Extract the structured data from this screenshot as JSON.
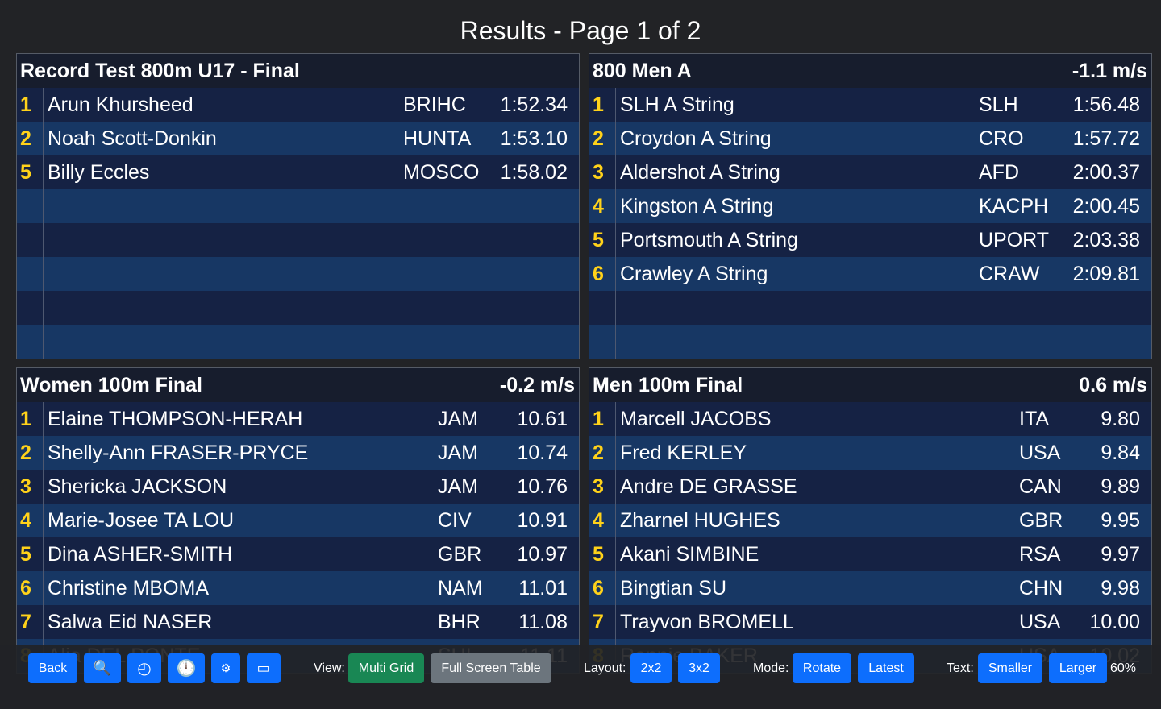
{
  "page_title": "Results - Page 1 of 2",
  "panels": [
    {
      "title": "Record Test 800m U17 - Final",
      "wind": "",
      "club_width": 114,
      "time_width": 104,
      "rows": [
        {
          "pos": "1",
          "name": "Arun Khursheed",
          "club": "BRIHC",
          "time": "1:52.34"
        },
        {
          "pos": "2",
          "name": "Noah Scott-Donkin",
          "club": "HUNTA",
          "time": "1:53.10"
        },
        {
          "pos": "5",
          "name": "Billy Eccles",
          "club": "MOSCO",
          "time": "1:58.02"
        },
        {
          "pos": "",
          "name": "",
          "club": "",
          "time": ""
        },
        {
          "pos": "",
          "name": "",
          "club": "",
          "time": ""
        },
        {
          "pos": "",
          "name": "",
          "club": "",
          "time": ""
        },
        {
          "pos": "",
          "name": "",
          "club": "",
          "time": ""
        },
        {
          "pos": "",
          "name": "",
          "club": "",
          "time": ""
        }
      ]
    },
    {
      "title": "800 Men A",
      "wind": "-1.1 m/s",
      "club_width": 106,
      "time_width": 108,
      "rows": [
        {
          "pos": "1",
          "name": "SLH A String",
          "club": "SLH",
          "time": "1:56.48"
        },
        {
          "pos": "2",
          "name": "Croydon A String",
          "club": "CRO",
          "time": "1:57.72"
        },
        {
          "pos": "3",
          "name": "Aldershot A String",
          "club": "AFD",
          "time": "2:00.37"
        },
        {
          "pos": "4",
          "name": "Kingston A String",
          "club": "KACPH",
          "time": "2:00.45"
        },
        {
          "pos": "5",
          "name": "Portsmouth A String",
          "club": "UPORT",
          "time": "2:03.38"
        },
        {
          "pos": "6",
          "name": "Crawley A String",
          "club": "CRAW",
          "time": "2:09.81"
        },
        {
          "pos": "",
          "name": "",
          "club": "",
          "time": ""
        },
        {
          "pos": "",
          "name": "",
          "club": "",
          "time": ""
        }
      ]
    },
    {
      "title": "Women 100m Final",
      "wind": "-0.2 m/s",
      "club_width": 96,
      "time_width": 79,
      "rows": [
        {
          "pos": "1",
          "name": "Elaine THOMPSON-HERAH",
          "club": "JAM",
          "time": "10.61"
        },
        {
          "pos": "2",
          "name": "Shelly-Ann FRASER-PRYCE",
          "club": "JAM",
          "time": "10.74"
        },
        {
          "pos": "3",
          "name": "Shericka JACKSON",
          "club": "JAM",
          "time": "10.76"
        },
        {
          "pos": "4",
          "name": "Marie-Josee TA LOU",
          "club": "CIV",
          "time": "10.91"
        },
        {
          "pos": "5",
          "name": "Dina ASHER-SMITH",
          "club": "GBR",
          "time": "10.97"
        },
        {
          "pos": "6",
          "name": "Christine MBOMA",
          "club": "NAM",
          "time": "11.01"
        },
        {
          "pos": "7",
          "name": "Salwa Eid NASER",
          "club": "BHR",
          "time": "11.08"
        },
        {
          "pos": "8",
          "name": "Alia DEL PONTE",
          "club": "SUI",
          "time": "11.11"
        }
      ]
    },
    {
      "title": "Men 100m Final",
      "wind": "0.6 m/s",
      "club_width": 84,
      "time_width": 80,
      "rows": [
        {
          "pos": "1",
          "name": "Marcell JACOBS",
          "club": "ITA",
          "time": "9.80"
        },
        {
          "pos": "2",
          "name": "Fred KERLEY",
          "club": "USA",
          "time": "9.84"
        },
        {
          "pos": "3",
          "name": "Andre DE GRASSE",
          "club": "CAN",
          "time": "9.89"
        },
        {
          "pos": "4",
          "name": "Zharnel HUGHES",
          "club": "GBR",
          "time": "9.95"
        },
        {
          "pos": "5",
          "name": "Akani SIMBINE",
          "club": "RSA",
          "time": "9.97"
        },
        {
          "pos": "6",
          "name": "Bingtian SU",
          "club": "CHN",
          "time": "9.98"
        },
        {
          "pos": "7",
          "name": "Trayvon BROMELL",
          "club": "USA",
          "time": "10.00"
        },
        {
          "pos": "8",
          "name": "Ronnie BAKER",
          "club": "USA",
          "time": "10.02"
        }
      ]
    }
  ],
  "toolbar": {
    "back_label": "Back",
    "search_icon": "🔍",
    "speed_icon": "◴",
    "clock_icon": "🕛",
    "settings_icon": "⚙",
    "display_icon": "▭",
    "view_label": "View:",
    "multi_grid_label": "Multi Grid",
    "full_screen_label": "Full Screen Table",
    "layout_label": "Layout:",
    "layout_2x2": "2x2",
    "layout_3x2": "3x2",
    "mode_label": "Mode:",
    "rotate_label": "Rotate",
    "latest_label": "Latest",
    "text_label": "Text:",
    "smaller_label": "Smaller",
    "larger_label": "Larger",
    "text_size": "60%"
  },
  "colors": {
    "background": "#222326",
    "position_yellow": "#ffd21a",
    "row_dark": "#152244",
    "row_light": "#173764",
    "button_blue": "#0d6efd",
    "button_green": "#198754",
    "button_grey": "#6c757d"
  }
}
